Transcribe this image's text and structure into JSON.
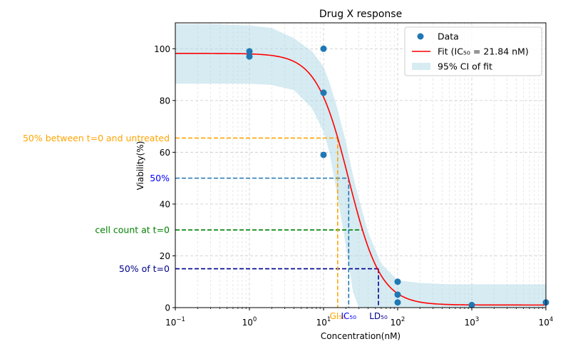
{
  "chart_data": {
    "type": "scatter",
    "title": "Drug X response",
    "xlabel": "Concentration(nM)",
    "ylabel": "Viability(%)",
    "xscale": "log",
    "xlim": [
      0.1,
      10000
    ],
    "ylim": [
      0,
      110
    ],
    "grid": "on (major and minor x, major y, dashed)",
    "x_ticks": [
      {
        "value": 0.1,
        "base": "10",
        "exp": "−1"
      },
      {
        "value": 1,
        "base": "10",
        "exp": "0"
      },
      {
        "value": 10,
        "base": "10",
        "exp": "1"
      },
      {
        "value": 100,
        "base": "10",
        "exp": "2"
      },
      {
        "value": 1000,
        "base": "10",
        "exp": "3"
      },
      {
        "value": 10000,
        "base": "10",
        "exp": "4"
      }
    ],
    "y_ticks": [
      0,
      20,
      40,
      60,
      80,
      100
    ],
    "legend_position": "top-right",
    "legend": [
      {
        "label": "Data",
        "kind": "marker",
        "color": "#1f77b4"
      },
      {
        "label": "Fit (IC₅₀ = 21.84 nM)",
        "kind": "line",
        "color": "#ff0000"
      },
      {
        "label": "95% CI of fit",
        "kind": "patch",
        "color": "#add8e6"
      }
    ],
    "series": [
      {
        "name": "Data",
        "type": "scatter",
        "color": "#1f77b4",
        "points": [
          {
            "x": 1,
            "y": 99
          },
          {
            "x": 1,
            "y": 97
          },
          {
            "x": 10,
            "y": 100
          },
          {
            "x": 10,
            "y": 83
          },
          {
            "x": 10,
            "y": 59
          },
          {
            "x": 100,
            "y": 10
          },
          {
            "x": 100,
            "y": 5
          },
          {
            "x": 100,
            "y": 2
          },
          {
            "x": 1000,
            "y": 1
          },
          {
            "x": 10000,
            "y": 2
          }
        ]
      }
    ],
    "fit": {
      "name": "Fit (IC₅₀ = 21.84 nM)",
      "color": "#ff0000",
      "top": 98.2,
      "bottom": 1,
      "ic50": 21.84,
      "hill": 2
    },
    "ci_band": {
      "name": "95% CI of fit",
      "color": "#add8e6",
      "x": [
        0.1,
        0.3,
        1,
        2,
        4,
        7,
        10,
        12,
        15,
        20,
        25,
        30,
        40,
        60,
        100,
        200,
        500,
        1000,
        10000
      ],
      "upper": [
        109.5,
        109.5,
        109,
        108,
        104,
        99,
        93,
        87,
        78,
        64,
        51,
        42,
        29,
        17,
        10.5,
        9.5,
        9,
        9,
        9
      ],
      "lower": [
        86.5,
        86.5,
        86.5,
        86,
        84,
        77,
        68,
        60,
        45,
        24,
        6,
        0,
        0,
        0,
        0,
        0,
        0,
        0,
        0
      ]
    },
    "reference_lines": [
      {
        "label": "50% between t=0 and untreated",
        "y": 65.5,
        "x_end": 15.5,
        "color": "#ffa500"
      },
      {
        "label": "50%",
        "y": 50,
        "x_end": 21.84,
        "color": "#1f77b4",
        "label_color": "#0000ff"
      },
      {
        "label": "cell count at t=0",
        "y": 30,
        "x_end": 33,
        "color": "#008000"
      },
      {
        "label": "50% of t=0",
        "y": 15,
        "x_end": 55,
        "color": "#00008b"
      }
    ],
    "x_markers": [
      {
        "label": "GI₅₀",
        "x": 15.5,
        "color": "#ffa500"
      },
      {
        "label": "IC₅₀",
        "x": 21.84,
        "color": "#1f77b4",
        "label_color": "#0000ff"
      },
      {
        "label": "LD₅₀",
        "x": 55,
        "color": "#00008b"
      }
    ]
  }
}
